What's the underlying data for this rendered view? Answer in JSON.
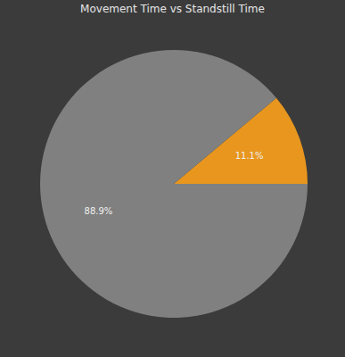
{
  "chart_data": {
    "type": "pie",
    "title": "Movement Time vs Standstill Time",
    "values": [
      11.1,
      88.9
    ],
    "value_labels": [
      "11.1%",
      "88.9%"
    ],
    "colors": [
      "#e8961e",
      "#808080"
    ],
    "data_labels": true
  }
}
